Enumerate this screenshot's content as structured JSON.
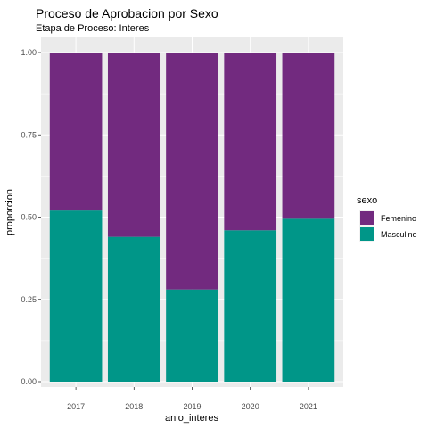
{
  "chart_data": {
    "type": "bar",
    "stacked": true,
    "title": "Proceso de Aprobacion por Sexo",
    "subtitle": "Etapa de Proceso: Interes",
    "xlabel": "anio_interes",
    "ylabel": "proporcion",
    "ylim": [
      0,
      1
    ],
    "yticks": [
      "0.00",
      "0.25",
      "0.50",
      "0.75",
      "1.00"
    ],
    "grid": true,
    "categories": [
      "2017",
      "2018",
      "2019",
      "2020",
      "2021"
    ],
    "series": [
      {
        "name": "Femenino",
        "color": "#722a7f",
        "values": [
          0.48,
          0.56,
          0.72,
          0.54,
          0.505
        ]
      },
      {
        "name": "Masculino",
        "color": "#009688",
        "values": [
          0.52,
          0.44,
          0.28,
          0.46,
          0.495
        ]
      }
    ],
    "legend": {
      "title": "sexo",
      "position": "right"
    }
  }
}
